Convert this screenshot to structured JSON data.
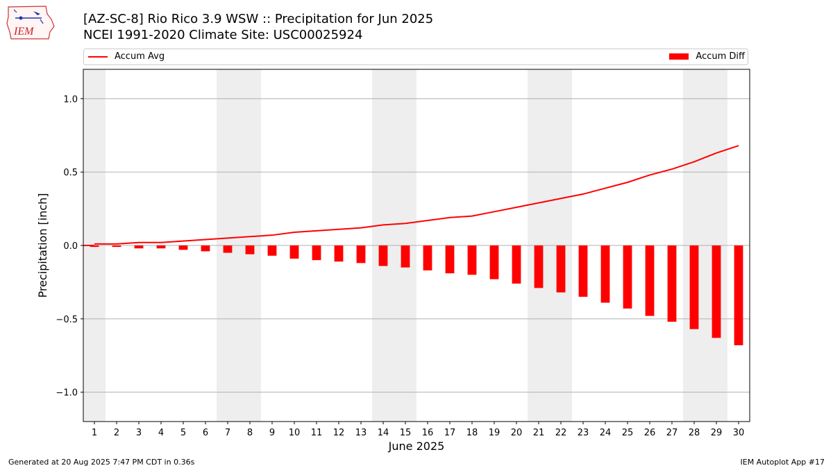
{
  "header": {
    "title_line1": "[AZ-SC-8] Rio Rico 3.9 WSW :: Precipitation for Jun 2025",
    "title_line2": "NCEI 1991-2020 Climate Site: USC00025924",
    "logo_text": "IEM"
  },
  "footer": {
    "generated": "Generated at 20 Aug 2025 7:47 PM CDT in 0.36s",
    "app": "IEM Autoplot App #17"
  },
  "colors": {
    "line": "#ff0000",
    "bar": "#ff0000",
    "weekend_band": "#eeeeee",
    "grid": "#b0b0b0"
  },
  "chart_data": {
    "type": "bar",
    "xlabel": "June 2025",
    "ylabel": "Precipitation [inch]",
    "xlim": [
      0.5,
      30.5
    ],
    "ylim": [
      -1.2,
      1.2
    ],
    "yticks": [
      -1.0,
      -0.5,
      0.0,
      0.5,
      1.0
    ],
    "ytick_labels": [
      "−1.0",
      "−0.5",
      "0.0",
      "0.5",
      "1.0"
    ],
    "categories": [
      1,
      2,
      3,
      4,
      5,
      6,
      7,
      8,
      9,
      10,
      11,
      12,
      13,
      14,
      15,
      16,
      17,
      18,
      19,
      20,
      21,
      22,
      23,
      24,
      25,
      26,
      27,
      28,
      29,
      30
    ],
    "shaded_days": [
      1,
      7,
      8,
      14,
      15,
      21,
      22,
      28,
      29
    ],
    "grid": "horizontal",
    "legend_position": "top",
    "series": [
      {
        "name": "Accum Avg",
        "type": "line",
        "values": [
          0.01,
          0.01,
          0.02,
          0.02,
          0.03,
          0.04,
          0.05,
          0.06,
          0.07,
          0.09,
          0.1,
          0.11,
          0.12,
          0.14,
          0.15,
          0.17,
          0.19,
          0.2,
          0.23,
          0.26,
          0.29,
          0.32,
          0.35,
          0.39,
          0.43,
          0.48,
          0.52,
          0.57,
          0.63,
          0.68
        ]
      },
      {
        "name": "Accum Diff",
        "type": "bar",
        "values": [
          -0.01,
          -0.01,
          -0.02,
          -0.02,
          -0.03,
          -0.04,
          -0.05,
          -0.06,
          -0.07,
          -0.09,
          -0.1,
          -0.11,
          -0.12,
          -0.14,
          -0.15,
          -0.17,
          -0.19,
          -0.2,
          -0.23,
          -0.26,
          -0.29,
          -0.32,
          -0.35,
          -0.39,
          -0.43,
          -0.48,
          -0.52,
          -0.57,
          -0.63,
          -0.68
        ]
      }
    ]
  }
}
